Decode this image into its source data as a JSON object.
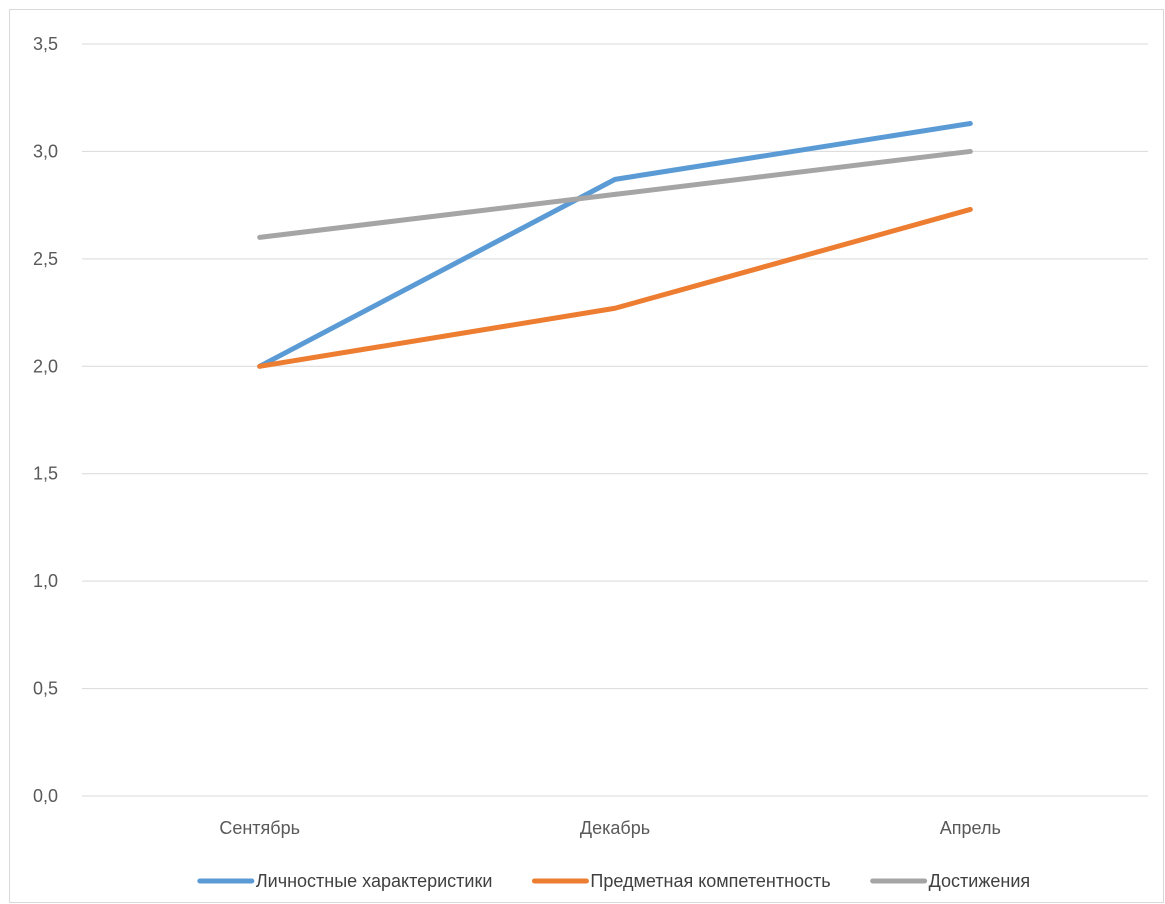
{
  "chart_data": {
    "type": "line",
    "title": "",
    "xlabel": "",
    "ylabel": "",
    "categories": [
      "Сентябрь",
      "Декабрь",
      "Апрель"
    ],
    "ylim": [
      0,
      3.5
    ],
    "y_ticks": [
      "0,0",
      "0,5",
      "1,0",
      "1,5",
      "2,0",
      "2,5",
      "3,0",
      "3,5"
    ],
    "y_tick_values": [
      0,
      0.5,
      1.0,
      1.5,
      2.0,
      2.5,
      3.0,
      3.5
    ],
    "grid": true,
    "legend_position": "bottom",
    "series": [
      {
        "name": "Личностные характеристики",
        "values": [
          2.0,
          2.87,
          3.13
        ],
        "color": "#5b9bd5"
      },
      {
        "name": "Предметная компетентность",
        "values": [
          2.0,
          2.27,
          2.73
        ],
        "color": "#ed7d31"
      },
      {
        "name": "Достижения",
        "values": [
          2.6,
          2.8,
          3.0
        ],
        "color": "#a5a5a5"
      }
    ]
  }
}
